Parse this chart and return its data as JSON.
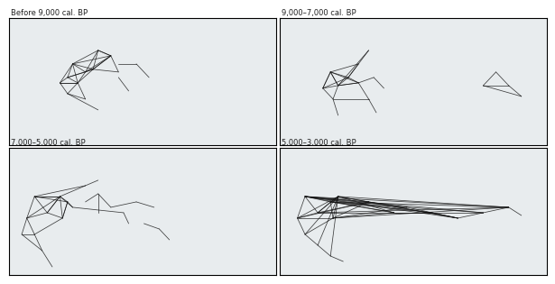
{
  "titles": [
    "Before 9,000 cal. BP",
    "9,000–7,000 cal. BP",
    "7,000–5,000 cal. BP",
    "5,000–3,000 cal. BP"
  ],
  "map_extent": [
    -15,
    90,
    25,
    72
  ],
  "land_color": "#f0f0f0",
  "ocean_color": "#dde8ee",
  "border_color": "#cccccc",
  "river_color": "#8ab4cc",
  "lake_color": "#a8c8dc",
  "line_color": "#111111",
  "title_fontsize": 6.0,
  "title_color": "#222222",
  "fig_bg": "#ffffff",
  "panel_bg": "#e8ecee",
  "panel0_lines": [
    [
      10,
      55,
      20,
      60
    ],
    [
      10,
      55,
      15,
      52
    ],
    [
      10,
      55,
      8,
      50
    ],
    [
      10,
      55,
      5,
      48
    ],
    [
      10,
      55,
      12,
      48
    ],
    [
      10,
      55,
      18,
      53
    ],
    [
      20,
      60,
      15,
      52
    ],
    [
      20,
      60,
      18,
      53
    ],
    [
      20,
      60,
      25,
      58
    ],
    [
      15,
      52,
      18,
      53
    ],
    [
      15,
      52,
      8,
      50
    ],
    [
      15,
      52,
      12,
      48
    ],
    [
      18,
      53,
      25,
      58
    ],
    [
      18,
      53,
      12,
      48
    ],
    [
      18,
      53,
      8,
      50
    ],
    [
      8,
      50,
      5,
      48
    ],
    [
      8,
      50,
      12,
      48
    ],
    [
      5,
      48,
      12,
      48
    ],
    [
      12,
      48,
      15,
      42
    ],
    [
      12,
      48,
      8,
      44
    ],
    [
      15,
      42,
      8,
      44
    ],
    [
      25,
      58,
      28,
      52
    ],
    [
      18,
      53,
      28,
      52
    ],
    [
      8,
      44,
      20,
      38
    ],
    [
      10,
      55,
      25,
      58
    ],
    [
      25,
      58,
      18,
      53
    ],
    [
      5,
      48,
      8,
      44
    ],
    [
      20,
      60,
      25,
      58
    ],
    [
      12,
      48,
      5,
      48
    ],
    [
      15,
      52,
      25,
      58
    ],
    [
      28,
      55,
      35,
      55
    ],
    [
      35,
      55,
      40,
      50
    ],
    [
      28,
      50,
      32,
      45
    ]
  ],
  "panel1_lines": [
    [
      5,
      52,
      12,
      50
    ],
    [
      5,
      52,
      2,
      46
    ],
    [
      5,
      52,
      8,
      47
    ],
    [
      12,
      50,
      8,
      47
    ],
    [
      12,
      50,
      2,
      46
    ],
    [
      12,
      50,
      16,
      48
    ],
    [
      2,
      46,
      8,
      47
    ],
    [
      8,
      47,
      16,
      48
    ],
    [
      8,
      47,
      6,
      42
    ],
    [
      2,
      46,
      6,
      42
    ],
    [
      16,
      48,
      20,
      42
    ],
    [
      6,
      42,
      20,
      42
    ],
    [
      5,
      52,
      16,
      48
    ],
    [
      20,
      42,
      23,
      37
    ],
    [
      6,
      42,
      8,
      36
    ],
    [
      12,
      50,
      16,
      55
    ],
    [
      5,
      52,
      16,
      55
    ],
    [
      16,
      55,
      20,
      60
    ],
    [
      16,
      55,
      12,
      50
    ],
    [
      20,
      60,
      8,
      47
    ],
    [
      2,
      46,
      5,
      52
    ],
    [
      8,
      47,
      5,
      52
    ],
    [
      16,
      48,
      8,
      47
    ],
    [
      22,
      50,
      16,
      48
    ],
    [
      22,
      50,
      26,
      46
    ],
    [
      70,
      52,
      75,
      47
    ],
    [
      70,
      52,
      65,
      47
    ],
    [
      75,
      47,
      65,
      47
    ],
    [
      75,
      47,
      80,
      43
    ],
    [
      65,
      47,
      80,
      43
    ]
  ],
  "panel2_lines": [
    [
      -5,
      54,
      5,
      54
    ],
    [
      -5,
      54,
      0,
      48
    ],
    [
      -5,
      54,
      -8,
      46
    ],
    [
      5,
      54,
      0,
      48
    ],
    [
      5,
      54,
      8,
      52
    ],
    [
      5,
      54,
      6,
      46
    ],
    [
      0,
      48,
      -8,
      46
    ],
    [
      0,
      48,
      6,
      46
    ],
    [
      8,
      52,
      6,
      46
    ],
    [
      -8,
      46,
      -5,
      40
    ],
    [
      -8,
      46,
      -10,
      40
    ],
    [
      6,
      46,
      -5,
      40
    ],
    [
      -5,
      40,
      -10,
      40
    ],
    [
      -5,
      40,
      -2,
      34
    ],
    [
      -10,
      40,
      -2,
      34
    ],
    [
      -2,
      34,
      2,
      28
    ],
    [
      5,
      54,
      10,
      50
    ],
    [
      8,
      52,
      10,
      50
    ],
    [
      -5,
      54,
      8,
      52
    ],
    [
      5,
      54,
      -8,
      46
    ],
    [
      -5,
      54,
      5,
      54
    ],
    [
      0,
      48,
      5,
      54
    ],
    [
      10,
      50,
      30,
      48
    ],
    [
      30,
      48,
      32,
      44
    ],
    [
      38,
      44,
      44,
      42
    ],
    [
      44,
      42,
      48,
      38
    ],
    [
      6,
      46,
      8,
      52
    ],
    [
      5,
      54,
      15,
      58
    ],
    [
      15,
      58,
      20,
      60
    ],
    [
      -5,
      54,
      15,
      58
    ],
    [
      20,
      55,
      25,
      50
    ],
    [
      25,
      50,
      35,
      52
    ],
    [
      35,
      52,
      42,
      50
    ],
    [
      15,
      52,
      20,
      55
    ],
    [
      20,
      55,
      20,
      48
    ]
  ],
  "panel3_lines": [
    [
      -5,
      54,
      5,
      52
    ],
    [
      -5,
      54,
      0,
      48
    ],
    [
      -5,
      54,
      -8,
      46
    ],
    [
      5,
      52,
      0,
      48
    ],
    [
      5,
      52,
      8,
      54
    ],
    [
      5,
      52,
      6,
      46
    ],
    [
      0,
      48,
      8,
      54
    ],
    [
      0,
      48,
      -8,
      46
    ],
    [
      8,
      54,
      6,
      46
    ],
    [
      -8,
      46,
      -5,
      40
    ],
    [
      -8,
      46,
      6,
      46
    ],
    [
      6,
      46,
      -5,
      40
    ],
    [
      -5,
      40,
      0,
      36
    ],
    [
      0,
      36,
      5,
      32
    ],
    [
      5,
      32,
      10,
      30
    ],
    [
      -5,
      54,
      75,
      50
    ],
    [
      5,
      52,
      75,
      50
    ],
    [
      8,
      54,
      75,
      50
    ],
    [
      0,
      48,
      75,
      50
    ],
    [
      6,
      46,
      75,
      50
    ],
    [
      -5,
      54,
      65,
      48
    ],
    [
      5,
      52,
      65,
      48
    ],
    [
      -5,
      54,
      55,
      46
    ],
    [
      8,
      54,
      55,
      46
    ],
    [
      55,
      46,
      65,
      48
    ],
    [
      65,
      48,
      75,
      50
    ],
    [
      75,
      50,
      80,
      47
    ],
    [
      8,
      54,
      20,
      52
    ],
    [
      20,
      52,
      35,
      50
    ],
    [
      35,
      50,
      55,
      46
    ],
    [
      6,
      46,
      20,
      52
    ],
    [
      20,
      52,
      55,
      46
    ],
    [
      -5,
      40,
      8,
      54
    ],
    [
      0,
      36,
      8,
      54
    ],
    [
      -8,
      46,
      8,
      54
    ],
    [
      -5,
      54,
      35,
      50
    ],
    [
      -5,
      54,
      20,
      52
    ],
    [
      6,
      46,
      35,
      50
    ],
    [
      0,
      48,
      20,
      52
    ],
    [
      -8,
      46,
      20,
      52
    ],
    [
      5,
      32,
      8,
      54
    ],
    [
      -5,
      54,
      45,
      48
    ],
    [
      5,
      52,
      45,
      48
    ],
    [
      0,
      48,
      45,
      48
    ],
    [
      45,
      48,
      55,
      46
    ],
    [
      45,
      48,
      65,
      48
    ],
    [
      8,
      54,
      30,
      48
    ],
    [
      5,
      52,
      30,
      48
    ],
    [
      30,
      48,
      45,
      48
    ],
    [
      6,
      46,
      30,
      48
    ],
    [
      -5,
      54,
      30,
      48
    ]
  ]
}
